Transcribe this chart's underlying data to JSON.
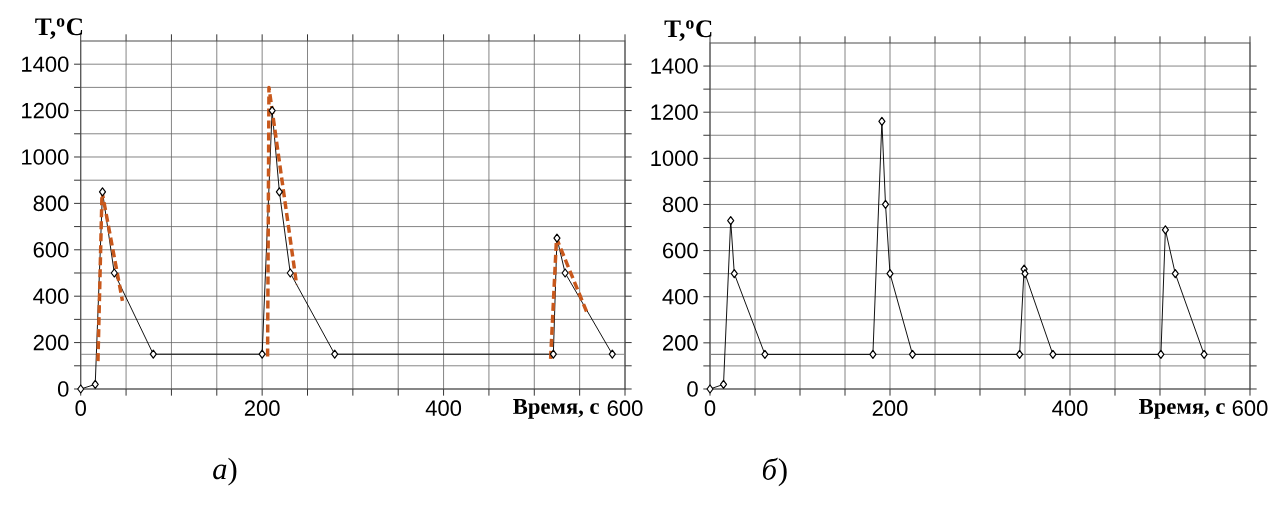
{
  "chart_data": [
    {
      "type": "line",
      "title": "*а*)",
      "xlabel": "Время, с",
      "ylabel": "T,$^{o}$C",
      "xlim": [
        0,
        600
      ],
      "ylim": [
        0,
        1500
      ],
      "xticks": [
        0,
        {
          "value": 50,
          "label": null
        },
        {
          "value": 100,
          "label": null
        },
        {
          "value": 150,
          "label": null
        },
        200,
        {
          "value": 250,
          "label": null
        },
        {
          "value": 300,
          "label": null
        },
        {
          "value": 350,
          "label": null
        },
        400,
        {
          "value": 450,
          "label": null
        },
        {
          "value": 500,
          "label": null
        },
        {
          "value": 550,
          "label": null
        },
        600
      ],
      "yticks": [
        0,
        {
          "value": 100,
          "label": null
        },
        200,
        {
          "value": 300,
          "label": null
        },
        400,
        {
          "value": 500,
          "label": null
        },
        600,
        {
          "value": 700,
          "label": null
        },
        800,
        {
          "value": 900,
          "label": null
        },
        1000,
        {
          "value": 1100,
          "label": null
        },
        1200,
        {
          "value": 1300,
          "label": null
        },
        1400
      ],
      "grid": true,
      "ref_lines": [
        {
          "axis": "y",
          "value": 150,
          "color": "#808080"
        }
      ],
      "series": [
        {
          "color": "#000000",
          "marker": "diamond",
          "line_style": "solid",
          "x": [
            0,
            16,
            24,
            37,
            80,
            200,
            211,
            219,
            231,
            280,
            521,
            525,
            534,
            586
          ],
          "values": [
            0,
            20,
            850,
            500,
            150,
            150,
            1200,
            850,
            500,
            150,
            150,
            650,
            500,
            150
          ]
        },
        {
          "color": "#c8581c",
          "marker": "none",
          "line_style": "dashed",
          "x": [
            19,
            23.5,
            46
          ],
          "values": [
            120,
            850,
            380
          ]
        },
        {
          "color": "#c8581c",
          "marker": "none",
          "line_style": "dashed",
          "x": [
            206,
            207.5,
            238
          ],
          "values": [
            140,
            1300,
            450
          ]
        },
        {
          "color": "#c8581c",
          "marker": "none",
          "line_style": "dashed",
          "x": [
            518,
            524.5,
            558
          ],
          "values": [
            130,
            650,
            330
          ]
        }
      ]
    },
    {
      "type": "line",
      "title": "*б*)",
      "xlabel": "Время, с",
      "ylabel": "T,$^{o}$C",
      "xlim": [
        0,
        600
      ],
      "ylim": [
        0,
        1500
      ],
      "xticks": [
        0,
        {
          "value": 50,
          "label": null
        },
        {
          "value": 100,
          "label": null
        },
        {
          "value": 150,
          "label": null
        },
        200,
        {
          "value": 250,
          "label": null
        },
        {
          "value": 300,
          "label": null
        },
        {
          "value": 350,
          "label": null
        },
        400,
        {
          "value": 450,
          "label": null
        },
        {
          "value": 500,
          "label": null
        },
        {
          "value": 550,
          "label": null
        },
        600
      ],
      "yticks": [
        0,
        {
          "value": 100,
          "label": null
        },
        200,
        {
          "value": 300,
          "label": null
        },
        400,
        {
          "value": 500,
          "label": null
        },
        600,
        {
          "value": 700,
          "label": null
        },
        800,
        {
          "value": 900,
          "label": null
        },
        1000,
        {
          "value": 1100,
          "label": null
        },
        1200,
        {
          "value": 1300,
          "label": null
        },
        1400
      ],
      "grid": true,
      "ref_lines": [
        {
          "axis": "y",
          "value": 150,
          "color": "#808080"
        }
      ],
      "series": [
        {
          "color": "#000000",
          "marker": "diamond",
          "line_style": "solid",
          "x": [
            0,
            15,
            23,
            27,
            61,
            181,
            191,
            195,
            200,
            225,
            344,
            349,
            350,
            381,
            501,
            506,
            517,
            549
          ],
          "values": [
            0,
            20,
            730,
            500,
            150,
            150,
            1160,
            800,
            500,
            150,
            150,
            520,
            500,
            150,
            150,
            690,
            500,
            150
          ]
        }
      ]
    }
  ]
}
